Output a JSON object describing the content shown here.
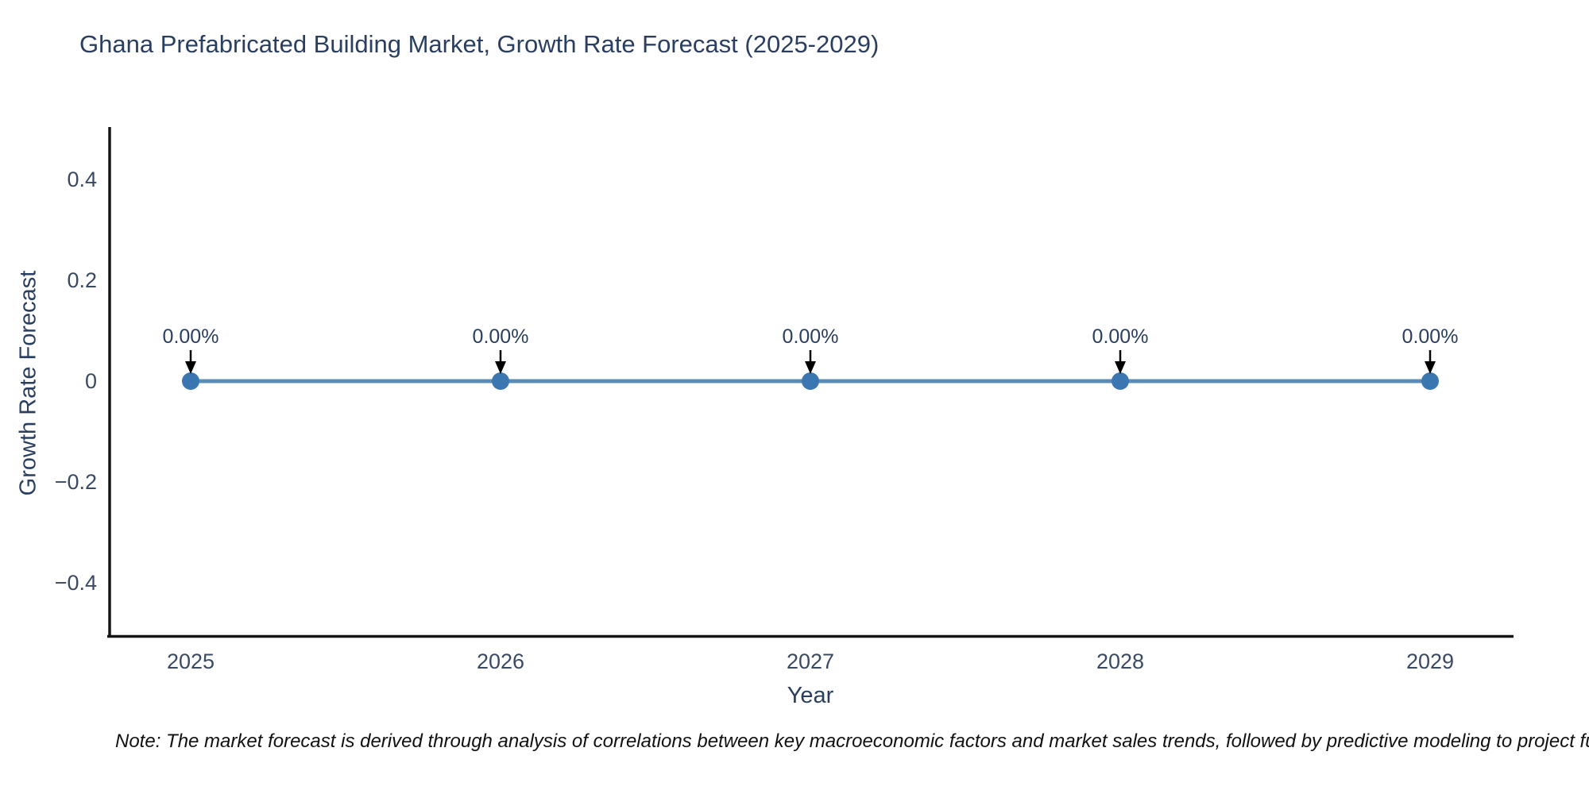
{
  "note": "Note: The market forecast is derived through analysis of correlations between key macroeconomic factors and market sales trends, followed by predictive modeling to project future sa",
  "chart_data": {
    "type": "line",
    "title": "Ghana Prefabricated Building Market, Growth Rate Forecast (2025-2029)",
    "xlabel": "Year",
    "ylabel": "Growth Rate Forecast",
    "categories": [
      2025,
      2026,
      2027,
      2028,
      2029
    ],
    "series": [
      {
        "name": "Growth Rate Forecast",
        "values": [
          0,
          0,
          0,
          0,
          0
        ]
      }
    ],
    "point_labels": [
      "0.00%",
      "0.00%",
      "0.00%",
      "0.00%",
      "0.00%"
    ],
    "xtick_labels": [
      "2025",
      "2026",
      "2027",
      "2028",
      "2029"
    ],
    "ytick_values": [
      0.4,
      0.2,
      0,
      -0.2,
      -0.4
    ],
    "ytick_labels": [
      "0.4",
      "0.2",
      "0",
      "−0.2",
      "−0.4"
    ],
    "ylim": [
      -0.5,
      0.5
    ],
    "grid": false,
    "legend": "none",
    "colors": {
      "line": "#5b8cb8",
      "marker": "#3a77b0",
      "axis_line": "#151515",
      "tick_text": "#3b4a63",
      "title_text": "#2a3f5f",
      "annotation_text": "#2a3f5f",
      "annotation_arrow": "#000000"
    }
  }
}
